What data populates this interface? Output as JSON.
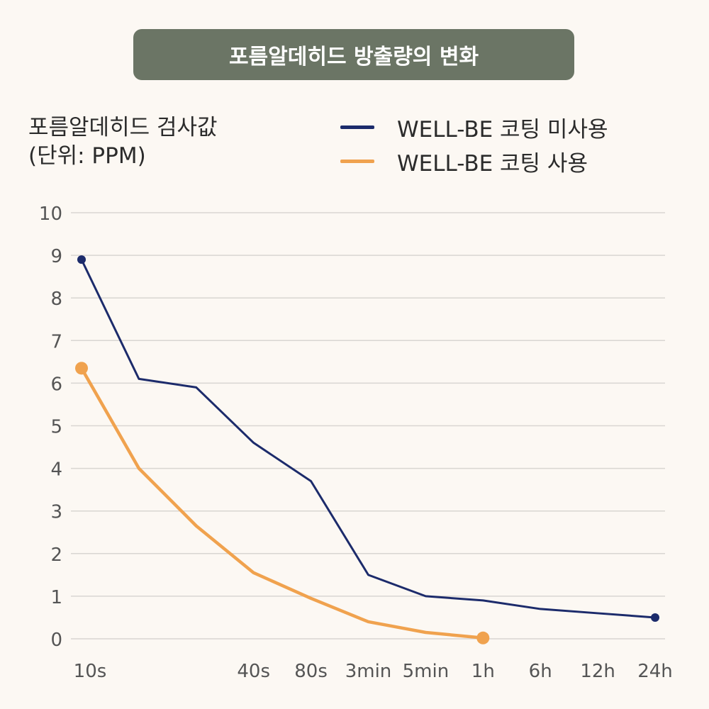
{
  "chart_data": {
    "type": "line",
    "title": "포름알데히드 방출량의 변화",
    "ylabel_lines": [
      "포름알데히드 검사값",
      "(단위: PPM)"
    ],
    "ylim": [
      0,
      10
    ],
    "yticks": [
      0,
      1,
      2,
      3,
      4,
      5,
      6,
      7,
      8,
      9,
      10
    ],
    "xtick_labels": [
      "10s",
      "40s",
      "80s",
      "3min",
      "5min",
      "1h",
      "6h",
      "12h",
      "24h"
    ],
    "xtick_positions": [
      0,
      3,
      4,
      5,
      6,
      7,
      8,
      9,
      10
    ],
    "x_domain": [
      0,
      10
    ],
    "series": [
      {
        "name": "WELL-BE 코팅 미사용",
        "color": "#1c2b6b",
        "x": [
          0,
          1,
          2,
          3,
          4,
          5,
          6,
          7,
          8,
          9,
          10
        ],
        "values": [
          8.9,
          6.1,
          5.9,
          4.6,
          3.7,
          1.5,
          1.0,
          0.9,
          0.7,
          0.6,
          0.5
        ],
        "endpoint_markers": true
      },
      {
        "name": "WELL-BE 코팅 사용",
        "color": "#f0a24e",
        "x": [
          0,
          1,
          2,
          3,
          4,
          5,
          6,
          7
        ],
        "values": [
          6.35,
          4.0,
          2.65,
          1.55,
          0.95,
          0.4,
          0.15,
          0.02
        ],
        "endpoint_markers": true
      }
    ]
  }
}
